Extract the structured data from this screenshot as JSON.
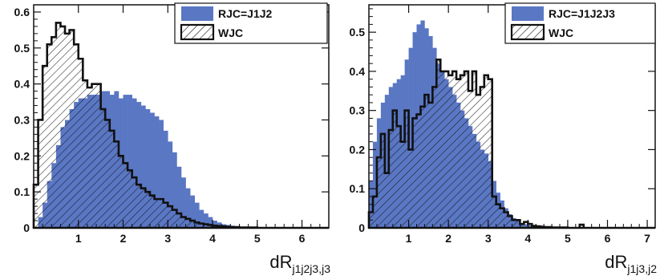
{
  "chart_data": [
    {
      "type": "histogram",
      "xlabel_main": "dR",
      "xlabel_sub": "j1j2j3,j3",
      "xlim": [
        0,
        6.6
      ],
      "ylim": [
        0,
        0.62
      ],
      "xticks": [
        1,
        2,
        3,
        4,
        5,
        6
      ],
      "yticks": [
        0,
        0.1,
        0.2,
        0.3,
        0.4,
        0.5,
        0.6
      ],
      "ytick_labels": [
        "0",
        "0.1",
        "0.2",
        "0.3",
        "0.4",
        "0.5",
        "0.6"
      ],
      "legend_position": "top-right",
      "bin_width": 0.1,
      "x_start": 0.0,
      "series": [
        {
          "name": "RJC=J1J2",
          "color": "#5a77c4",
          "style": "filled",
          "values": [
            0.0,
            0.03,
            0.07,
            0.13,
            0.18,
            0.23,
            0.28,
            0.3,
            0.33,
            0.35,
            0.36,
            0.36,
            0.37,
            0.37,
            0.37,
            0.38,
            0.38,
            0.37,
            0.38,
            0.36,
            0.37,
            0.37,
            0.36,
            0.35,
            0.34,
            0.33,
            0.32,
            0.31,
            0.3,
            0.27,
            0.24,
            0.21,
            0.17,
            0.14,
            0.11,
            0.09,
            0.07,
            0.05,
            0.04,
            0.03,
            0.02,
            0.015,
            0.01,
            0.008,
            0.006,
            0.004,
            0.003,
            0.002,
            0.002,
            0.001,
            0.001,
            0.001,
            0.001,
            0.0,
            0.0,
            0.0,
            0.0,
            0.0,
            0.0,
            0.0,
            0.0,
            0.0,
            0.0,
            0.0,
            0.0,
            0.0
          ]
        },
        {
          "name": "WJC",
          "color": "#111111",
          "style": "hatched",
          "values": [
            0.12,
            0.3,
            0.45,
            0.51,
            0.53,
            0.57,
            0.56,
            0.54,
            0.55,
            0.51,
            0.47,
            0.41,
            0.39,
            0.4,
            0.4,
            0.33,
            0.3,
            0.27,
            0.24,
            0.2,
            0.18,
            0.16,
            0.14,
            0.12,
            0.11,
            0.1,
            0.09,
            0.08,
            0.08,
            0.07,
            0.06,
            0.05,
            0.04,
            0.03,
            0.025,
            0.02,
            0.015,
            0.012,
            0.01,
            0.008,
            0.006,
            0.005,
            0.004,
            0.003,
            0.002,
            0.002,
            0.001,
            0.001,
            0.001,
            0.001,
            0.0,
            0.0,
            0.0,
            0.0,
            0.0,
            0.0,
            0.0,
            0.0,
            0.0,
            0.0,
            0.0,
            0.0,
            0.0,
            0.0,
            0.0,
            0.0
          ]
        }
      ]
    },
    {
      "type": "histogram",
      "xlabel_main": "dR",
      "xlabel_sub": "j1j3,j2",
      "xlim": [
        0,
        7.2
      ],
      "ylim": [
        0,
        0.57
      ],
      "xticks": [
        1,
        2,
        3,
        4,
        5,
        6,
        7
      ],
      "yticks": [
        0,
        0.1,
        0.2,
        0.3,
        0.4,
        0.5
      ],
      "ytick_labels": [
        "0",
        "0.1",
        "0.2",
        "0.3",
        "0.4",
        "0.5"
      ],
      "legend_position": "top-right",
      "bin_width": 0.1,
      "x_start": 0.0,
      "series": [
        {
          "name": "RJC=J1J2J3",
          "color": "#5a77c4",
          "style": "filled",
          "values": [
            0.12,
            0.22,
            0.28,
            0.32,
            0.34,
            0.36,
            0.37,
            0.38,
            0.39,
            0.43,
            0.46,
            0.5,
            0.52,
            0.53,
            0.51,
            0.49,
            0.46,
            0.42,
            0.4,
            0.38,
            0.36,
            0.34,
            0.32,
            0.3,
            0.28,
            0.26,
            0.24,
            0.22,
            0.2,
            0.19,
            0.17,
            0.12,
            0.09,
            0.07,
            0.05,
            0.035,
            0.025,
            0.018,
            0.012,
            0.009,
            0.006,
            0.005,
            0.004,
            0.003,
            0.002,
            0.002,
            0.001,
            0.001,
            0.001,
            0.001,
            0.0,
            0.0,
            0.0,
            0.0,
            0.0,
            0.0,
            0.0,
            0.0,
            0.0,
            0.0,
            0.0,
            0.0,
            0.0,
            0.0,
            0.0,
            0.0,
            0.0,
            0.0,
            0.0,
            0.0,
            0.0,
            0.0
          ]
        },
        {
          "name": "WJC",
          "color": "#111111",
          "style": "hatched",
          "values": [
            0.04,
            0.08,
            0.18,
            0.24,
            0.14,
            0.25,
            0.3,
            0.26,
            0.22,
            0.3,
            0.2,
            0.28,
            0.29,
            0.31,
            0.34,
            0.32,
            0.36,
            0.43,
            0.4,
            0.4,
            0.39,
            0.4,
            0.38,
            0.39,
            0.4,
            0.35,
            0.4,
            0.34,
            0.36,
            0.39,
            0.38,
            0.08,
            0.06,
            0.05,
            0.04,
            0.03,
            0.02,
            0.02,
            0.01,
            0.015,
            0.01,
            0.005,
            0.004,
            0.003,
            0.002,
            0.002,
            0.001,
            0.001,
            0.001,
            0.001,
            0.0,
            0.0,
            0.0,
            0.008,
            0.0,
            0.0,
            0.0,
            0.0,
            0.0,
            0.0,
            0.0,
            0.0,
            0.0,
            0.0,
            0.0,
            0.0,
            0.0,
            0.0,
            0.0,
            0.0,
            0.0,
            0.0
          ]
        }
      ]
    }
  ]
}
